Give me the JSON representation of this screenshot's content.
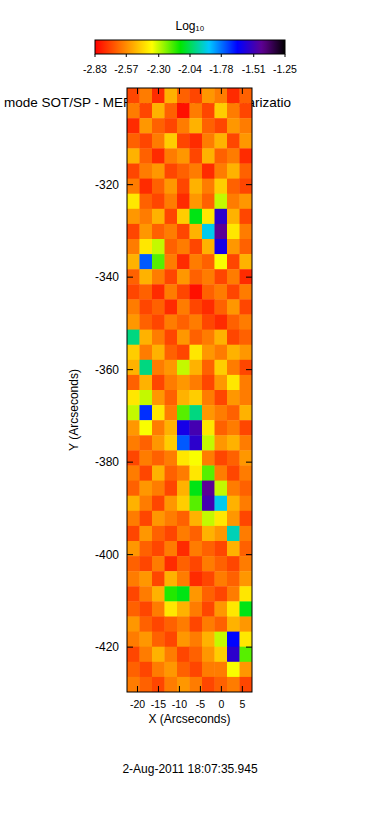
{
  "chart_data": {
    "type": "heatmap",
    "title": "mode SOT/SP - MERLIN : Degree of Polarizatio",
    "subtitle": "2-Aug-2011 18:07:35.945",
    "xlabel": "X (Arcseconds)",
    "ylabel": "Y (Arcseconds)",
    "xlim": [
      -22.5,
      7.3
    ],
    "ylim": [
      -429.7,
      -299.1
    ],
    "xticks": [
      -20,
      -15,
      -10,
      -5,
      0,
      5
    ],
    "yticks": [
      -320,
      -340,
      -360,
      -380,
      -400,
      -420
    ],
    "colorbar": {
      "label": "Log₁₀",
      "range": [
        -2.83,
        -1.25
      ],
      "ticks": [
        -2.83,
        -2.57,
        {
          "value": -2.3,
          "label": "-2.30"
        },
        -2.04,
        -1.78,
        -1.51,
        -1.25
      ]
    },
    "cells": [
      [
        -2.7,
        -2.6,
        -2.75,
        -2.5,
        -2.65,
        -2.7,
        -2.55,
        -2.6,
        -2.75,
        -2.65
      ],
      [
        -2.6,
        -2.7,
        -2.5,
        -2.65,
        -2.8,
        -2.6,
        -2.7,
        -2.45,
        -2.6,
        -2.7
      ],
      [
        -2.75,
        -2.55,
        -2.65,
        -2.7,
        -2.6,
        -2.5,
        -2.65,
        -2.7,
        -2.55,
        -2.6
      ],
      [
        -2.65,
        -2.7,
        -2.6,
        -2.45,
        -2.7,
        -2.75,
        -2.6,
        -2.5,
        -2.7,
        -2.55
      ],
      [
        -2.5,
        -2.65,
        -2.75,
        -2.6,
        -2.55,
        -2.7,
        -2.5,
        -2.65,
        -2.6,
        -2.75
      ],
      [
        -2.7,
        -2.6,
        -2.55,
        -2.7,
        -2.65,
        -2.6,
        -2.75,
        -2.6,
        -2.5,
        -2.65
      ],
      [
        -2.6,
        -2.75,
        -2.65,
        -2.55,
        -2.7,
        -2.5,
        -2.6,
        -2.45,
        -2.65,
        -2.7
      ],
      [
        -2.4,
        -2.65,
        -2.7,
        -2.6,
        -2.75,
        -2.55,
        -2.65,
        -2.3,
        -2.6,
        -2.55
      ],
      [
        -2.55,
        -2.6,
        -2.5,
        -2.7,
        -2.45,
        -2.1,
        -2.4,
        -1.55,
        -2.5,
        -2.7
      ],
      [
        -2.7,
        -2.55,
        -2.65,
        -2.6,
        -2.7,
        -2.5,
        -1.9,
        -1.45,
        -2.4,
        -2.6
      ],
      [
        -2.6,
        -2.4,
        -2.3,
        -2.65,
        -2.6,
        -2.7,
        -2.5,
        -1.6,
        -2.55,
        -2.65
      ],
      [
        -2.5,
        -1.75,
        -2.2,
        -2.6,
        -2.75,
        -2.6,
        -2.65,
        -2.35,
        -2.7,
        -2.5
      ],
      [
        -2.65,
        -2.5,
        -2.6,
        -2.7,
        -2.55,
        -2.65,
        -2.6,
        -2.7,
        -2.6,
        -2.75
      ],
      [
        -2.7,
        -2.65,
        -2.75,
        -2.6,
        -2.7,
        -2.8,
        -2.65,
        -2.6,
        -2.7,
        -2.6
      ],
      [
        -2.6,
        -2.7,
        -2.65,
        -2.75,
        -2.6,
        -2.7,
        -2.75,
        -2.65,
        -2.55,
        -2.7
      ],
      [
        -2.55,
        -2.65,
        -2.7,
        -2.6,
        -2.65,
        -2.6,
        -2.7,
        -2.75,
        -2.65,
        -2.6
      ],
      [
        -2.0,
        -2.5,
        -2.6,
        -2.7,
        -2.55,
        -2.65,
        -2.6,
        -2.5,
        -2.7,
        -2.65
      ],
      [
        -2.45,
        -2.6,
        -2.5,
        -2.65,
        -2.7,
        -2.4,
        -2.55,
        -2.6,
        -2.5,
        -2.55
      ],
      [
        -2.5,
        -2.0,
        -2.6,
        -2.55,
        -2.3,
        -2.5,
        -2.65,
        -2.45,
        -2.6,
        -2.7
      ],
      [
        -2.65,
        -2.5,
        -2.7,
        -2.6,
        -2.55,
        -2.6,
        -2.7,
        -2.55,
        -2.4,
        -2.6
      ],
      [
        -2.4,
        -2.3,
        -2.55,
        -2.65,
        -2.5,
        -2.45,
        -2.6,
        -2.7,
        -2.55,
        -2.6
      ],
      [
        -2.3,
        -1.7,
        -2.4,
        -2.6,
        -2.2,
        -2.0,
        -2.55,
        -2.6,
        -2.65,
        -2.5
      ],
      [
        -2.55,
        -2.35,
        -2.6,
        -2.5,
        -1.6,
        -1.5,
        -2.4,
        -2.65,
        -2.6,
        -2.7
      ],
      [
        -2.6,
        -2.65,
        -2.55,
        -2.45,
        -1.75,
        -1.55,
        -2.3,
        -2.55,
        -2.5,
        -2.6
      ],
      [
        -2.7,
        -2.6,
        -2.65,
        -2.6,
        -2.4,
        -2.35,
        -2.6,
        -2.7,
        -2.65,
        -2.55
      ],
      [
        -2.6,
        -2.7,
        -2.5,
        -2.65,
        -2.6,
        -2.4,
        -2.2,
        -2.6,
        -2.7,
        -2.6
      ],
      [
        -2.65,
        -2.55,
        -2.6,
        -2.7,
        -2.5,
        -2.1,
        -1.45,
        -2.3,
        -2.6,
        -2.65
      ],
      [
        -2.5,
        -2.6,
        -2.7,
        -2.55,
        -2.45,
        -2.2,
        -1.5,
        -1.9,
        -2.5,
        -2.6
      ],
      [
        -2.6,
        -2.7,
        -2.55,
        -2.6,
        -2.65,
        -2.5,
        -2.3,
        -2.4,
        -2.55,
        -2.7
      ],
      [
        -2.7,
        -2.55,
        -2.65,
        -2.7,
        -2.6,
        -2.65,
        -2.5,
        -2.55,
        -1.95,
        -2.6
      ],
      [
        -2.55,
        -2.65,
        -2.7,
        -2.6,
        -2.75,
        -2.6,
        -2.65,
        -2.7,
        -2.5,
        -2.65
      ],
      [
        -2.65,
        -2.7,
        -2.6,
        -2.75,
        -2.65,
        -2.7,
        -2.6,
        -2.65,
        -2.7,
        -2.6
      ],
      [
        -2.6,
        -2.55,
        -2.7,
        -2.5,
        -2.6,
        -2.75,
        -2.7,
        -2.6,
        -2.65,
        -2.55
      ],
      [
        -2.7,
        -2.6,
        -2.5,
        -2.15,
        -2.1,
        -2.55,
        -2.65,
        -2.7,
        -2.6,
        -2.4
      ],
      [
        -2.65,
        -2.7,
        -2.6,
        -2.4,
        -2.5,
        -2.6,
        -2.7,
        -2.55,
        -2.4,
        -2.1
      ],
      [
        -2.55,
        -2.65,
        -2.7,
        -2.65,
        -2.6,
        -2.7,
        -2.6,
        -2.65,
        -2.5,
        -2.55
      ],
      [
        -2.6,
        -2.55,
        -2.65,
        -2.7,
        -2.55,
        -2.6,
        -2.5,
        -2.3,
        -1.65,
        -2.4
      ],
      [
        -2.7,
        -2.6,
        -2.5,
        -2.6,
        -2.7,
        -2.65,
        -2.55,
        -2.45,
        -1.55,
        -2.2
      ],
      [
        -2.65,
        -2.7,
        -2.6,
        -2.55,
        -2.65,
        -2.7,
        -2.6,
        -2.6,
        -2.35,
        -2.55
      ],
      [
        -2.6,
        -2.65,
        -2.7,
        -2.6,
        -2.55,
        -2.6,
        -2.7,
        -2.65,
        -2.6,
        -2.7
      ]
    ]
  }
}
